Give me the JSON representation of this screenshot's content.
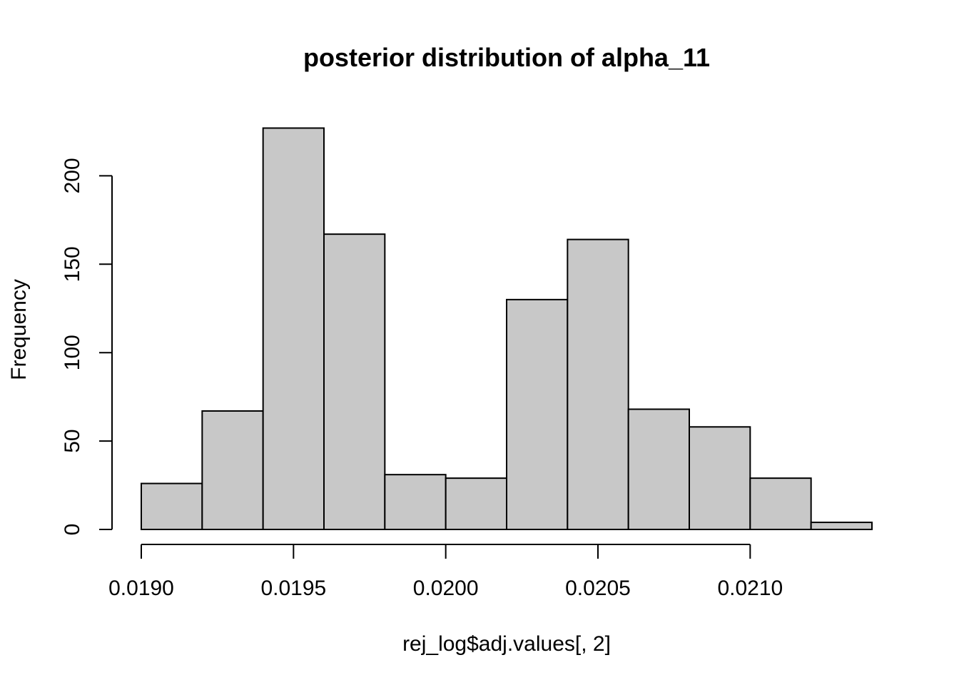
{
  "chart_data": {
    "type": "bar",
    "subtype": "histogram",
    "title": "posterior distribution of alpha_11",
    "xlabel": "rej_log$adj.values[, 2]",
    "ylabel": "Frequency",
    "bin_edges": [
      0.019,
      0.0192,
      0.0194,
      0.0196,
      0.0198,
      0.02,
      0.0202,
      0.0204,
      0.0206,
      0.0208,
      0.021,
      0.0212,
      0.0214
    ],
    "values": [
      26,
      67,
      227,
      167,
      31,
      29,
      130,
      164,
      68,
      58,
      29,
      4
    ],
    "xlim": [
      0.019,
      0.0214
    ],
    "ylim": [
      0,
      227
    ],
    "x_ticks": [
      0.019,
      0.0195,
      0.02,
      0.0205,
      0.021
    ],
    "x_tick_labels": [
      "0.0190",
      "0.0195",
      "0.0200",
      "0.0205",
      "0.0210"
    ],
    "y_ticks": [
      0,
      50,
      100,
      150,
      200
    ],
    "y_tick_labels": [
      "0",
      "50",
      "100",
      "150",
      "200"
    ],
    "grid": false,
    "legend": "none",
    "colors": {
      "bar_fill": "#c8c8c8",
      "bar_stroke": "#000000",
      "axis": "#000000",
      "background": "#ffffff"
    }
  }
}
